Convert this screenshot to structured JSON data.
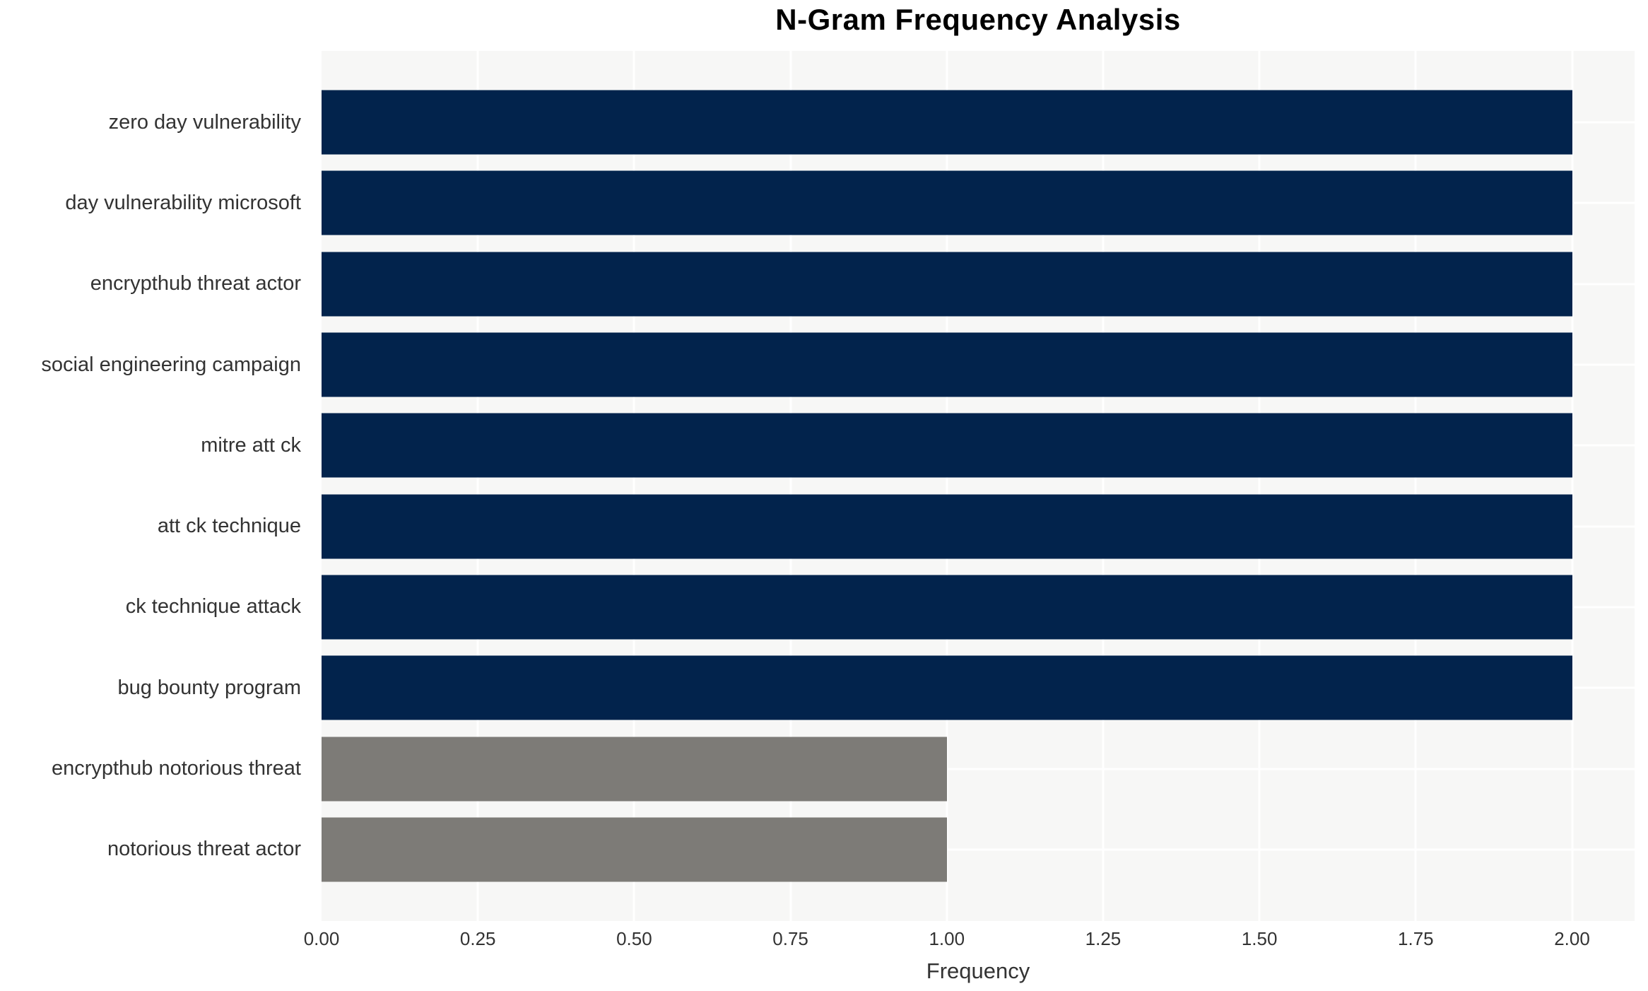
{
  "title": "N-Gram Frequency Analysis",
  "chart_data": {
    "type": "bar",
    "orientation": "horizontal",
    "title": "N-Gram Frequency Analysis",
    "xlabel": "Frequency",
    "ylabel": "",
    "categories": [
      "zero day vulnerability",
      "day vulnerability microsoft",
      "encrypthub threat actor",
      "social engineering campaign",
      "mitre att ck",
      "att ck technique",
      "ck technique attack",
      "bug bounty program",
      "encrypthub notorious threat",
      "notorious threat actor"
    ],
    "values": [
      2,
      2,
      2,
      2,
      2,
      2,
      2,
      2,
      1,
      1
    ],
    "bar_colors": [
      "#02234c",
      "#02234c",
      "#02234c",
      "#02234c",
      "#02234c",
      "#02234c",
      "#02234c",
      "#02234c",
      "#7d7b77",
      "#7d7b77"
    ],
    "xlim": [
      0,
      2.1
    ],
    "xtick_values": [
      0,
      0.25,
      0.5,
      0.75,
      1.0,
      1.25,
      1.5,
      1.75,
      2.0
    ],
    "xtick_labels": [
      "0.00",
      "0.25",
      "0.50",
      "0.75",
      "1.00",
      "1.25",
      "1.50",
      "1.75",
      "2.00"
    ],
    "grid": "on",
    "legend": "none",
    "colors": {
      "bar_high_frequency": "#02234c",
      "bar_low_frequency": "#7d7b77",
      "plot_background": "#f7f7f6",
      "figure_background": "#ffffff",
      "gridline": "#ffffff",
      "tick_text": "#333333",
      "title_text": "#000000"
    }
  }
}
